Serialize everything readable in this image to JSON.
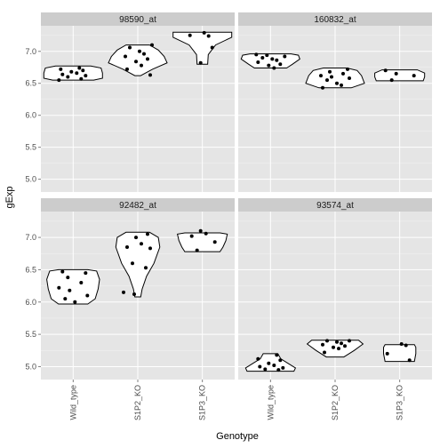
{
  "chart_data": {
    "type": "violin",
    "xlabel": "Genotype",
    "ylabel": "gExp",
    "categories": [
      "Wild_type",
      "S1P2_KO",
      "S1P3_KO"
    ],
    "y_ticks": [
      "5.0",
      "5.5",
      "6.0",
      "6.5",
      "7.0"
    ],
    "ylim": [
      4.8,
      7.4
    ],
    "grid": true,
    "facets": [
      {
        "title": "98590_at",
        "groups": [
          {
            "category": "Wild_type",
            "points": [
              6.55,
              6.57,
              6.6,
              6.62,
              6.64,
              6.66,
              6.68,
              6.7,
              6.72,
              6.74
            ]
          },
          {
            "category": "S1P2_KO",
            "points": [
              6.63,
              6.72,
              6.78,
              6.84,
              6.88,
              6.92,
              6.96,
              7.0,
              7.06,
              7.1
            ]
          },
          {
            "category": "S1P3_KO",
            "points": [
              6.82,
              7.06,
              7.25,
              7.24,
              7.29
            ]
          }
        ]
      },
      {
        "title": "160832_at",
        "groups": [
          {
            "category": "Wild_type",
            "points": [
              6.74,
              6.78,
              6.8,
              6.83,
              6.86,
              6.88,
              6.9,
              6.92,
              6.94,
              6.95
            ]
          },
          {
            "category": "S1P2_KO",
            "points": [
              6.43,
              6.47,
              6.5,
              6.55,
              6.58,
              6.6,
              6.62,
              6.65,
              6.68,
              6.72
            ]
          },
          {
            "category": "S1P3_KO",
            "points": [
              6.55,
              6.62,
              6.65,
              6.7
            ]
          }
        ]
      },
      {
        "title": "92482_at",
        "groups": [
          {
            "category": "Wild_type",
            "points": [
              6.0,
              6.05,
              6.1,
              6.18,
              6.22,
              6.3,
              6.38,
              6.45,
              6.47
            ]
          },
          {
            "category": "S1P2_KO",
            "points": [
              6.12,
              6.15,
              6.53,
              6.6,
              6.83,
              6.85,
              6.9,
              7.0,
              7.05
            ]
          },
          {
            "category": "S1P3_KO",
            "points": [
              6.8,
              6.93,
              7.02,
              7.06,
              7.1
            ]
          }
        ]
      },
      {
        "title": "93574_at",
        "groups": [
          {
            "category": "Wild_type",
            "points": [
              4.95,
              4.96,
              4.98,
              5.0,
              5.02,
              5.05,
              5.1,
              5.12,
              5.18
            ]
          },
          {
            "category": "S1P2_KO",
            "points": [
              5.22,
              5.28,
              5.3,
              5.32,
              5.34,
              5.36,
              5.38,
              5.4,
              5.4
            ]
          },
          {
            "category": "S1P3_KO",
            "points": [
              5.1,
              5.2,
              5.33,
              5.35
            ]
          }
        ]
      }
    ],
    "violins": [
      [
        {
          "ymin": 6.55,
          "ymax": 6.77,
          "profile": [
            [
              6.55,
              0.7
            ],
            [
              6.58,
              1.0
            ],
            [
              6.66,
              1.0
            ],
            [
              6.74,
              0.95
            ],
            [
              6.77,
              0.6
            ]
          ]
        },
        {
          "ymin": 6.62,
          "ymax": 7.1,
          "profile": [
            [
              6.62,
              0.1
            ],
            [
              6.72,
              0.5
            ],
            [
              6.82,
              1.0
            ],
            [
              6.92,
              0.9
            ],
            [
              7.02,
              0.7
            ],
            [
              7.1,
              0.4
            ]
          ]
        },
        {
          "ymin": 6.8,
          "ymax": 7.3,
          "profile": [
            [
              6.8,
              0.18
            ],
            [
              6.95,
              0.2
            ],
            [
              7.1,
              0.45
            ],
            [
              7.22,
              1.0
            ],
            [
              7.3,
              1.0
            ]
          ]
        }
      ],
      [
        {
          "ymin": 6.74,
          "ymax": 6.96,
          "profile": [
            [
              6.74,
              0.55
            ],
            [
              6.8,
              0.75
            ],
            [
              6.88,
              1.0
            ],
            [
              6.94,
              0.95
            ],
            [
              6.96,
              0.7
            ]
          ]
        },
        {
          "ymin": 6.43,
          "ymax": 6.74,
          "profile": [
            [
              6.43,
              0.55
            ],
            [
              6.5,
              1.0
            ],
            [
              6.62,
              0.9
            ],
            [
              6.7,
              0.75
            ],
            [
              6.74,
              0.4
            ]
          ]
        },
        {
          "ymin": 6.54,
          "ymax": 6.71,
          "profile": [
            [
              6.54,
              0.8
            ],
            [
              6.6,
              0.85
            ],
            [
              6.66,
              0.85
            ],
            [
              6.71,
              0.6
            ]
          ]
        }
      ],
      [
        {
          "ymin": 5.97,
          "ymax": 6.5,
          "profile": [
            [
              5.97,
              0.5
            ],
            [
              6.05,
              0.75
            ],
            [
              6.2,
              0.85
            ],
            [
              6.35,
              0.9
            ],
            [
              6.48,
              0.8
            ],
            [
              6.5,
              0.5
            ]
          ]
        },
        {
          "ymin": 6.08,
          "ymax": 7.08,
          "profile": [
            [
              6.08,
              0.1
            ],
            [
              6.2,
              0.15
            ],
            [
              6.4,
              0.3
            ],
            [
              6.6,
              0.55
            ],
            [
              6.85,
              0.75
            ],
            [
              7.0,
              0.7
            ],
            [
              7.08,
              0.4
            ]
          ]
        },
        {
          "ymin": 6.78,
          "ymax": 7.07,
          "profile": [
            [
              6.78,
              0.6
            ],
            [
              6.85,
              0.7
            ],
            [
              6.95,
              0.8
            ],
            [
              7.05,
              0.85
            ],
            [
              7.07,
              0.6
            ]
          ]
        }
      ],
      [
        {
          "ymin": 4.93,
          "ymax": 5.2,
          "profile": [
            [
              4.93,
              0.8
            ],
            [
              4.98,
              0.85
            ],
            [
              5.05,
              0.6
            ],
            [
              5.12,
              0.35
            ],
            [
              5.2,
              0.25
            ]
          ]
        },
        {
          "ymin": 5.15,
          "ymax": 5.41,
          "profile": [
            [
              5.15,
              0.3
            ],
            [
              5.25,
              0.65
            ],
            [
              5.35,
              0.95
            ],
            [
              5.41,
              0.8
            ]
          ]
        },
        {
          "ymin": 5.08,
          "ymax": 5.34,
          "profile": [
            [
              5.08,
              0.5
            ],
            [
              5.2,
              0.55
            ],
            [
              5.3,
              0.55
            ],
            [
              5.34,
              0.5
            ]
          ]
        }
      ]
    ]
  }
}
